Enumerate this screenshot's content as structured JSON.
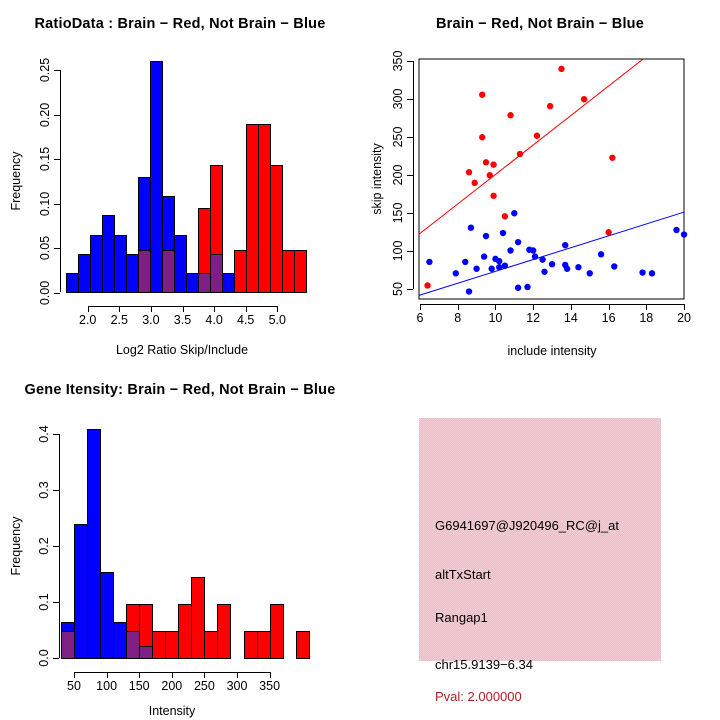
{
  "window_title": "R Graphics: 2x2 exon-skipping diagnostic plots",
  "colors": {
    "brain_red": "#ff0000",
    "not_brain_blue": "#0000ff",
    "overlap_purple": "#7e1f85",
    "info_bg_pink": "#edc6cd",
    "pval_red": "#b22222",
    "axis_black": "#000000"
  },
  "chart_data": [
    {
      "type": "bar",
      "subtype": "overlaid-histogram",
      "title": "RatioData : Brain − Red, Not Brain − Blue",
      "xlabel": "Log2 Ratio Skip/Include",
      "ylabel": "Frequency",
      "xticks": [
        "2.0",
        "2.5",
        "3.0",
        "3.5",
        "4.0",
        "4.5",
        "5.0"
      ],
      "yticks": [
        "0.00",
        "0.05",
        "0.10",
        "0.15",
        "0.20",
        "0.25"
      ],
      "xlim": [
        1.55,
        5.55
      ],
      "ylim": [
        0,
        0.27
      ],
      "bin_width": 0.19,
      "legend": {
        "red_series": "Brain",
        "blue_series": "Not Brain"
      },
      "bins": [
        {
          "x0": 1.66,
          "h": 0.022,
          "color": "blue",
          "overlap": 0
        },
        {
          "x0": 1.85,
          "h": 0.043,
          "color": "blue",
          "overlap": 0
        },
        {
          "x0": 2.04,
          "h": 0.065,
          "color": "blue",
          "overlap": 0
        },
        {
          "x0": 2.23,
          "h": 0.087,
          "color": "blue",
          "overlap": 0
        },
        {
          "x0": 2.42,
          "h": 0.065,
          "color": "blue",
          "overlap": 0
        },
        {
          "x0": 2.61,
          "h": 0.043,
          "color": "blue",
          "overlap": 0
        },
        {
          "x0": 2.8,
          "h": 0.13,
          "color": "blue",
          "overlap": 0.048
        },
        {
          "x0": 2.99,
          "h": 0.26,
          "color": "blue",
          "overlap": 0
        },
        {
          "x0": 3.18,
          "h": 0.108,
          "color": "blue",
          "overlap": 0.048
        },
        {
          "x0": 3.37,
          "h": 0.065,
          "color": "blue",
          "overlap": 0
        },
        {
          "x0": 3.56,
          "h": 0.022,
          "color": "blue",
          "overlap": 0
        },
        {
          "x0": 3.75,
          "h": 0.095,
          "color": "red",
          "overlap": 0.022
        },
        {
          "x0": 3.94,
          "h": 0.143,
          "color": "red",
          "overlap": 0.043
        },
        {
          "x0": 4.13,
          "h": 0.022,
          "color": "blue",
          "overlap": 0
        },
        {
          "x0": 4.32,
          "h": 0.048,
          "color": "red",
          "overlap": 0
        },
        {
          "x0": 4.51,
          "h": 0.19,
          "color": "red",
          "overlap": 0
        },
        {
          "x0": 4.7,
          "h": 0.19,
          "color": "red",
          "overlap": 0
        },
        {
          "x0": 4.89,
          "h": 0.143,
          "color": "red",
          "overlap": 0
        },
        {
          "x0": 5.08,
          "h": 0.048,
          "color": "red",
          "overlap": 0
        },
        {
          "x0": 5.27,
          "h": 0.048,
          "color": "red",
          "overlap": 0
        }
      ]
    },
    {
      "type": "scatter",
      "title": "Brain − Red, Not Brain − Blue",
      "xlabel": "include intensity",
      "ylabel": "skip intensity",
      "xticks": [
        "6",
        "8",
        "10",
        "12",
        "14",
        "16",
        "18",
        "20"
      ],
      "yticks": [
        "50",
        "100",
        "150",
        "200",
        "250",
        "300",
        "350"
      ],
      "xlim": [
        5.93,
        20.03
      ],
      "ylim": [
        36,
        352
      ],
      "grid": false,
      "red_points": [
        [
          6.4,
          54
        ],
        [
          8.6,
          203
        ],
        [
          8.9,
          189
        ],
        [
          9.3,
          305
        ],
        [
          9.3,
          249
        ],
        [
          9.5,
          216
        ],
        [
          9.7,
          199
        ],
        [
          9.9,
          213
        ],
        [
          9.9,
          172
        ],
        [
          10.5,
          145
        ],
        [
          10.8,
          278
        ],
        [
          11.3,
          227
        ],
        [
          12.2,
          251
        ],
        [
          12.9,
          290
        ],
        [
          13.5,
          339
        ],
        [
          14.7,
          299
        ],
        [
          16.0,
          124
        ],
        [
          16.2,
          222
        ]
      ],
      "blue_points": [
        [
          6.5,
          85
        ],
        [
          7.9,
          70
        ],
        [
          8.4,
          85
        ],
        [
          8.6,
          46
        ],
        [
          8.7,
          130
        ],
        [
          9.0,
          76
        ],
        [
          9.4,
          92
        ],
        [
          9.5,
          119
        ],
        [
          9.8,
          76
        ],
        [
          10.0,
          89
        ],
        [
          10.2,
          78
        ],
        [
          10.2,
          86
        ],
        [
          10.4,
          123
        ],
        [
          10.5,
          80
        ],
        [
          10.8,
          100
        ],
        [
          11.0,
          149
        ],
        [
          11.2,
          111
        ],
        [
          11.2,
          51
        ],
        [
          11.7,
          52
        ],
        [
          11.8,
          101
        ],
        [
          12.0,
          100
        ],
        [
          12.1,
          92
        ],
        [
          12.5,
          88
        ],
        [
          12.6,
          72
        ],
        [
          13.0,
          82
        ],
        [
          13.7,
          107
        ],
        [
          13.7,
          81
        ],
        [
          13.8,
          76
        ],
        [
          14.4,
          78
        ],
        [
          15.0,
          70
        ],
        [
          15.6,
          95
        ],
        [
          16.3,
          79
        ],
        [
          17.8,
          71
        ],
        [
          18.3,
          70
        ],
        [
          19.6,
          127
        ],
        [
          20.0,
          121
        ]
      ],
      "red_line": {
        "slope": 19.4,
        "intercept": 6
      },
      "blue_line": {
        "slope": 7.8,
        "intercept": -5.5
      }
    },
    {
      "type": "bar",
      "subtype": "overlaid-histogram",
      "title": "Gene Itensity: Brain − Red, Not Brain − Blue",
      "xlabel": "Intensity",
      "ylabel": "Frequency",
      "xticks": [
        "50",
        "100",
        "150",
        "200",
        "250",
        "300",
        "350"
      ],
      "yticks": [
        "0.0",
        "0.1",
        "0.2",
        "0.3",
        "0.4"
      ],
      "xlim": [
        20,
        420
      ],
      "ylim": [
        0,
        0.43
      ],
      "bin_width": 20,
      "legend": {
        "red_series": "Brain",
        "blue_series": "Not Brain"
      },
      "bins": [
        {
          "x0": 30,
          "h": 0.065,
          "color": "blue",
          "overlap": 0.048
        },
        {
          "x0": 50,
          "h": 0.24,
          "color": "blue",
          "overlap": 0
        },
        {
          "x0": 70,
          "h": 0.41,
          "color": "blue",
          "overlap": 0
        },
        {
          "x0": 90,
          "h": 0.153,
          "color": "blue",
          "overlap": 0
        },
        {
          "x0": 110,
          "h": 0.065,
          "color": "blue",
          "overlap": 0
        },
        {
          "x0": 130,
          "h": 0.097,
          "color": "red",
          "overlap": 0.048
        },
        {
          "x0": 150,
          "h": 0.097,
          "color": "red",
          "overlap": 0.022
        },
        {
          "x0": 170,
          "h": 0.048,
          "color": "red",
          "overlap": 0
        },
        {
          "x0": 190,
          "h": 0.048,
          "color": "red",
          "overlap": 0
        },
        {
          "x0": 210,
          "h": 0.097,
          "color": "red",
          "overlap": 0
        },
        {
          "x0": 230,
          "h": 0.145,
          "color": "red",
          "overlap": 0
        },
        {
          "x0": 250,
          "h": 0.048,
          "color": "red",
          "overlap": 0
        },
        {
          "x0": 270,
          "h": 0.097,
          "color": "red",
          "overlap": 0
        },
        {
          "x0": 290,
          "h": 0,
          "color": "red",
          "overlap": 0
        },
        {
          "x0": 310,
          "h": 0.048,
          "color": "red",
          "overlap": 0
        },
        {
          "x0": 330,
          "h": 0.048,
          "color": "red",
          "overlap": 0
        },
        {
          "x0": 350,
          "h": 0.097,
          "color": "red",
          "overlap": 0
        },
        {
          "x0": 370,
          "h": 0,
          "color": "red",
          "overlap": 0
        },
        {
          "x0": 390,
          "h": 0.048,
          "color": "red",
          "overlap": 0
        }
      ]
    }
  ],
  "info_panel": {
    "probe_id": "G6941697@J920496_RC@j_at",
    "event_type": "altTxStart",
    "gene_symbol": "Rangap1",
    "locus": "chr15.9139−6.34",
    "pval_text": "Pval: 2.000000"
  }
}
